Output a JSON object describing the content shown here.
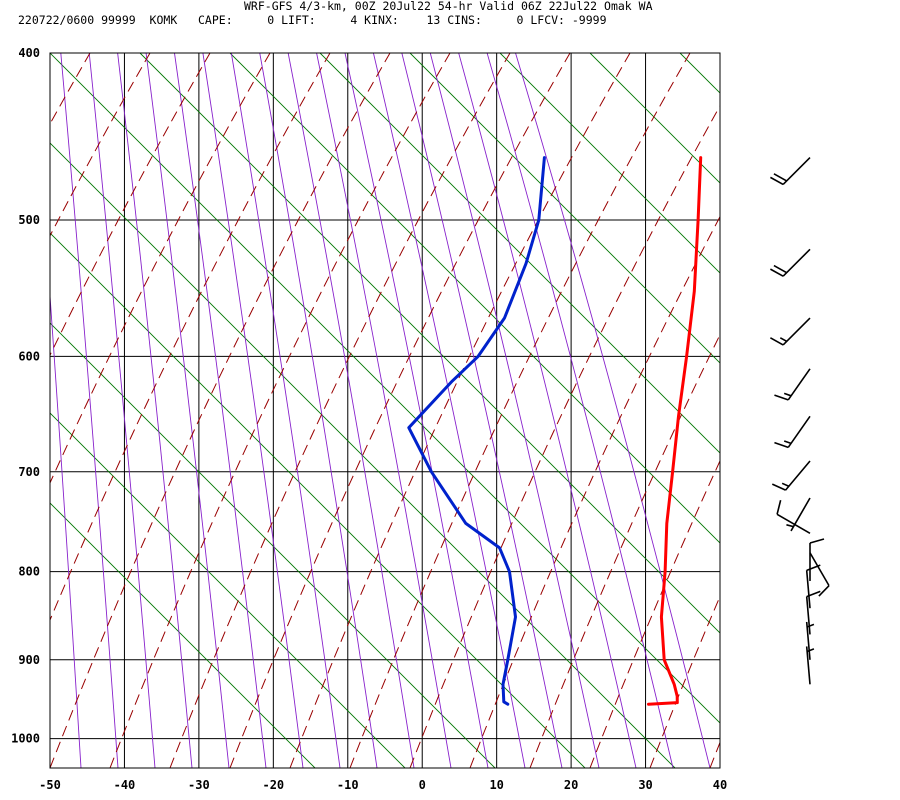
{
  "header": {
    "title": "WRF-GFS 4/3-km, 00Z 20Jul22 54-hr Valid 06Z 22Jul22 Omak WA",
    "stats": "220722/0600 99999  KOMK   CAPE:     0 LIFT:     4 KINX:    13 CINS:     0 LFCV: -9999"
  },
  "colors": {
    "temperature": "#ff0000",
    "dewpoint": "#0022cc",
    "dry_adiabat": "#990000",
    "moist_adiabat": "#8822cc",
    "mixing_ratio": "#007700",
    "grid": "#000000"
  },
  "chart_data": {
    "type": "line",
    "title": "WRF-GFS 4/3-km, 00Z 20Jul22 54-hr Valid 06Z 22Jul22 Omak WA",
    "xlabel": "",
    "ylabel": "",
    "x_ticks": [
      -50,
      -40,
      -30,
      -20,
      -10,
      0,
      10,
      20,
      30,
      40
    ],
    "y_ticks": [
      400,
      500,
      600,
      700,
      800,
      900,
      1000
    ],
    "xlim": [
      -50,
      40
    ],
    "ylim": [
      1040,
      400
    ],
    "y_scale": "log",
    "grid": true,
    "skewed": true,
    "series": [
      {
        "key": "temperature",
        "points": [
          {
            "p": 955,
            "t": 23.5
          },
          {
            "p": 953,
            "t": 27.2
          },
          {
            "p": 945,
            "t": 26.5
          },
          {
            "p": 930,
            "t": 24.8
          },
          {
            "p": 900,
            "t": 20.8
          },
          {
            "p": 850,
            "t": 15.8
          },
          {
            "p": 800,
            "t": 11.4
          },
          {
            "p": 750,
            "t": 6.4
          },
          {
            "p": 700,
            "t": 1.6
          },
          {
            "p": 650,
            "t": -3.6
          },
          {
            "p": 600,
            "t": -9.0
          },
          {
            "p": 550,
            "t": -15.0
          },
          {
            "p": 500,
            "t": -22.2
          },
          {
            "p": 460,
            "t": -28.6
          }
        ]
      },
      {
        "key": "dewpoint",
        "points": [
          {
            "p": 955,
            "t": 4.6
          },
          {
            "p": 952,
            "t": 3.8
          },
          {
            "p": 930,
            "t": 1.8
          },
          {
            "p": 900,
            "t": -0.2
          },
          {
            "p": 850,
            "t": -3.8
          },
          {
            "p": 800,
            "t": -9.5
          },
          {
            "p": 775,
            "t": -13.4
          },
          {
            "p": 750,
            "t": -20.6
          },
          {
            "p": 700,
            "t": -30.8
          },
          {
            "p": 660,
            "t": -38.6
          },
          {
            "p": 620,
            "t": -37.8
          },
          {
            "p": 600,
            "t": -37.0
          },
          {
            "p": 570,
            "t": -37.6
          },
          {
            "p": 530,
            "t": -40.6
          },
          {
            "p": 500,
            "t": -43.6
          },
          {
            "p": 460,
            "t": -49.6
          }
        ]
      }
    ],
    "wind_barbs": [
      {
        "p": 460,
        "dir": 225,
        "speed_kt": 20
      },
      {
        "p": 520,
        "dir": 225,
        "speed_kt": 20
      },
      {
        "p": 570,
        "dir": 225,
        "speed_kt": 15
      },
      {
        "p": 610,
        "dir": 215,
        "speed_kt": 15
      },
      {
        "p": 650,
        "dir": 215,
        "speed_kt": 15
      },
      {
        "p": 690,
        "dir": 220,
        "speed_kt": 15
      },
      {
        "p": 725,
        "dir": 210,
        "speed_kt": 5
      },
      {
        "p": 760,
        "dir": 300,
        "speed_kt": 10
      },
      {
        "p": 780,
        "dir": 150,
        "speed_kt": 10
      },
      {
        "p": 810,
        "dir": 0,
        "speed_kt": 10
      },
      {
        "p": 840,
        "dir": 355,
        "speed_kt": 10
      },
      {
        "p": 870,
        "dir": 355,
        "speed_kt": 10
      },
      {
        "p": 900,
        "dir": 355,
        "speed_kt": 5
      },
      {
        "p": 930,
        "dir": 355,
        "speed_kt": 5
      }
    ]
  }
}
